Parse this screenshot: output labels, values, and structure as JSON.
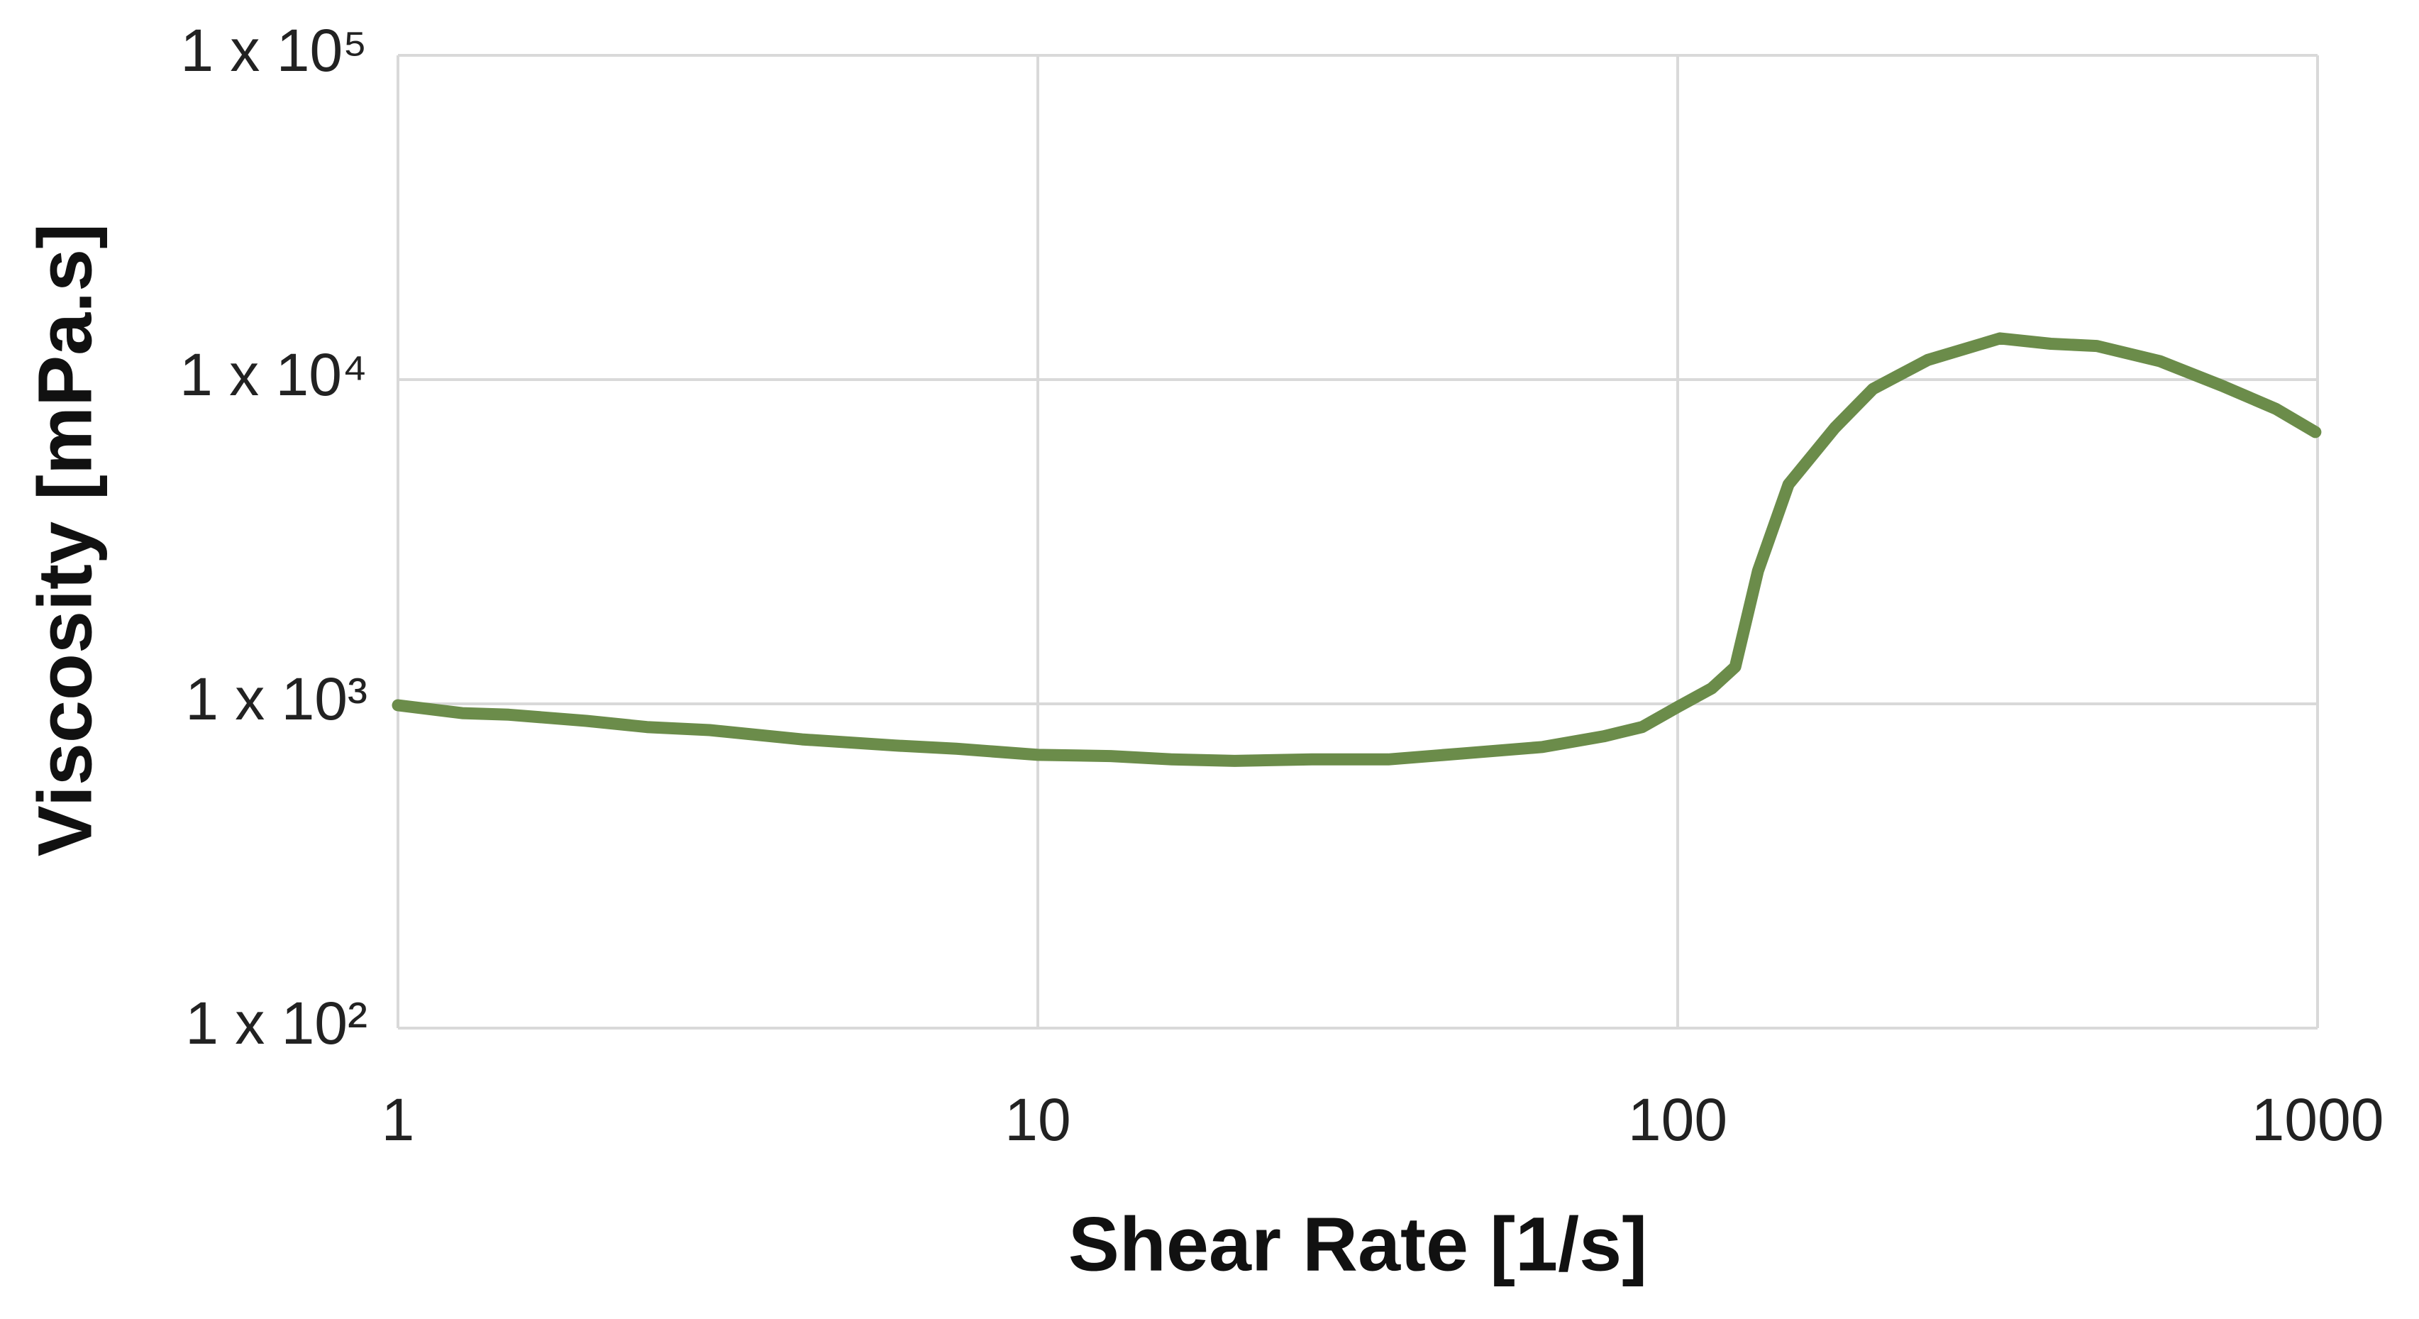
{
  "chart_data": {
    "type": "line",
    "xlabel": "Shear Rate [1/s]",
    "ylabel": "Viscosity [mPa.s]",
    "xscale": "log",
    "yscale": "log",
    "grid": true,
    "color": "#6b8c4a",
    "xlim": [
      1,
      1000
    ],
    "xticks": [
      1,
      10,
      100,
      1000
    ],
    "ylim": [
      100,
      100000
    ],
    "yticks": [
      {
        "value": 100,
        "label": "1 x 10²"
      },
      {
        "value": 1000,
        "label": "1 x 10³"
      },
      {
        "value": 10000,
        "label": "1 x 10⁴"
      },
      {
        "value": 100000,
        "label": "1 x 10⁵"
      }
    ],
    "x": [
      1,
      1.26,
      1.49,
      1.97,
      2.45,
      3.07,
      4.28,
      5.98,
      7.46,
      10,
      13,
      16.2,
      20.3,
      26.8,
      35.3,
      46.5,
      61.5,
      76.6,
      88,
      100,
      113,
      123,
      133.5,
      149,
      176,
      202,
      246,
      319,
      383,
      452,
      567,
      709,
      861,
      992
    ],
    "values": [
      990,
      936,
      926,
      886,
      848,
      830,
      777,
      744,
      727,
      696,
      690,
      674,
      667,
      674,
      674,
      704,
      736,
      794,
      848,
      978,
      1116,
      1300,
      2570,
      4750,
      7100,
      9360,
      11500,
      13400,
      12900,
      12700,
      11400,
      9570,
      8120,
      6890
    ]
  }
}
